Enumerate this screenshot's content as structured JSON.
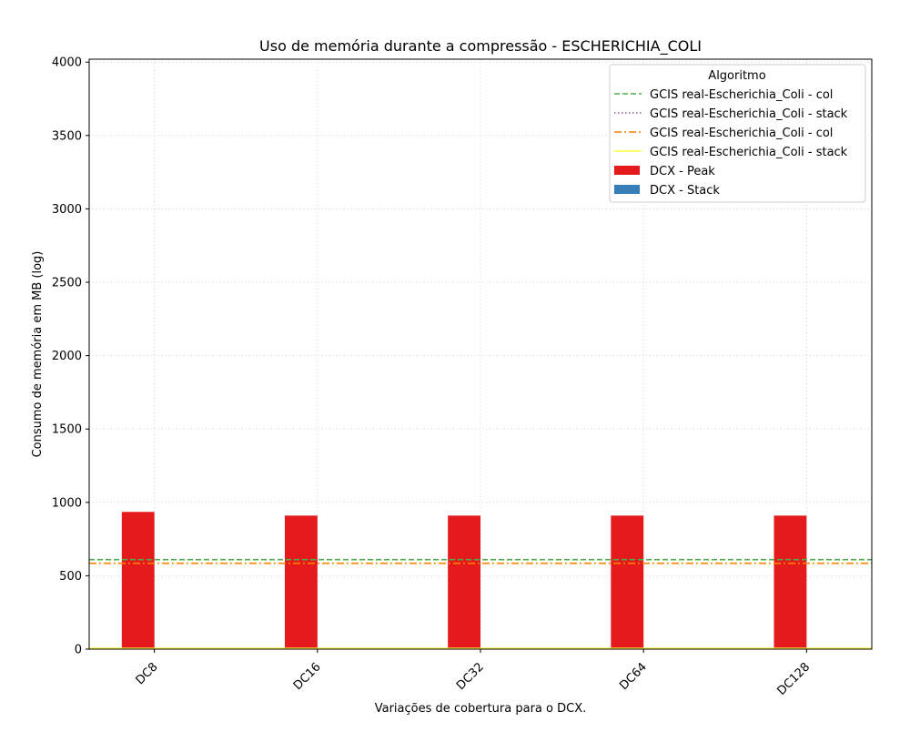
{
  "chart_data": {
    "type": "bar",
    "title": "Uso de memória durante a compressão -  ESCHERICHIA_COLI",
    "xlabel": "Variações de cobertura para o DCX.",
    "ylabel": "Consumo de memória em MB (log)",
    "categories": [
      "DC8",
      "DC16",
      "DC32",
      "DC64",
      "DC128"
    ],
    "ylim": [
      0,
      4020
    ],
    "yticks": [
      0,
      500,
      1000,
      1500,
      2000,
      2500,
      3000,
      3500,
      4000
    ],
    "grid": true,
    "legend": {
      "title": "Algoritmo",
      "placement": "top-right"
    },
    "series": [
      {
        "name": "DCX - Peak",
        "kind": "bar",
        "color": "#e41a1c",
        "values": [
          935,
          910,
          910,
          910,
          910
        ]
      },
      {
        "name": "DCX - Stack",
        "kind": "bar",
        "color": "#377eb8",
        "values": [
          0,
          0,
          0,
          0,
          0
        ]
      }
    ],
    "reference_lines": [
      {
        "name": "GCIS real-Escherichia_Coli - col",
        "value": 610,
        "color": "#4daf4a",
        "style": "dashed"
      },
      {
        "name": "GCIS real-Escherichia_Coli - stack",
        "value": 5,
        "color": "#984ea3",
        "style": "dotted"
      },
      {
        "name": "GCIS real-Escherichia_Coli - col",
        "value": 585,
        "color": "#ff7f00",
        "style": "dashdot"
      },
      {
        "name": "GCIS real-Escherichia_Coli - stack",
        "value": 5,
        "color": "#ffff33",
        "style": "solid"
      }
    ]
  }
}
